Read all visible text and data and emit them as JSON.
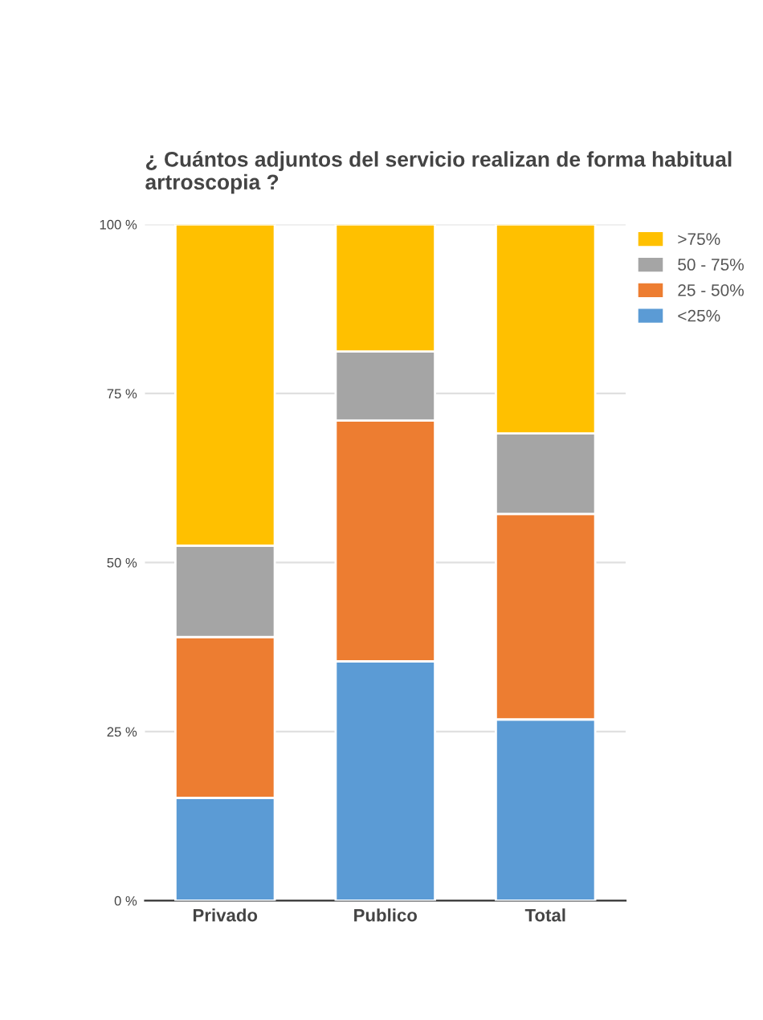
{
  "chart_data": {
    "type": "bar",
    "title": "¿ Cuántos adjuntos del servicio realizan de forma habitual artroscopia ?",
    "categories": [
      "Privado",
      "Publico",
      "Total"
    ],
    "stacked": true,
    "series": [
      {
        "name": "<25%",
        "color": "#5b9bd5",
        "values": [
          15.2,
          35.4,
          26.8
        ]
      },
      {
        "name": "25 - 50%",
        "color": "#ed7d31",
        "values": [
          23.8,
          35.6,
          30.4
        ]
      },
      {
        "name": "50 - 75%",
        "color": "#a5a5a5",
        "values": [
          13.5,
          10.2,
          11.9
        ]
      },
      {
        "name": ">75%",
        "color": "#ffc000",
        "values": [
          47.5,
          18.8,
          30.9
        ]
      }
    ],
    "ylim": [
      0,
      100
    ],
    "yticks": [
      {
        "value": 0,
        "label": "0 %"
      },
      {
        "value": 25,
        "label": "25 %"
      },
      {
        "value": 50,
        "label": "50 %"
      },
      {
        "value": 75,
        "label": "75 %"
      },
      {
        "value": 100,
        "label": "100 %"
      }
    ],
    "grid": "y",
    "legend": "top right"
  }
}
